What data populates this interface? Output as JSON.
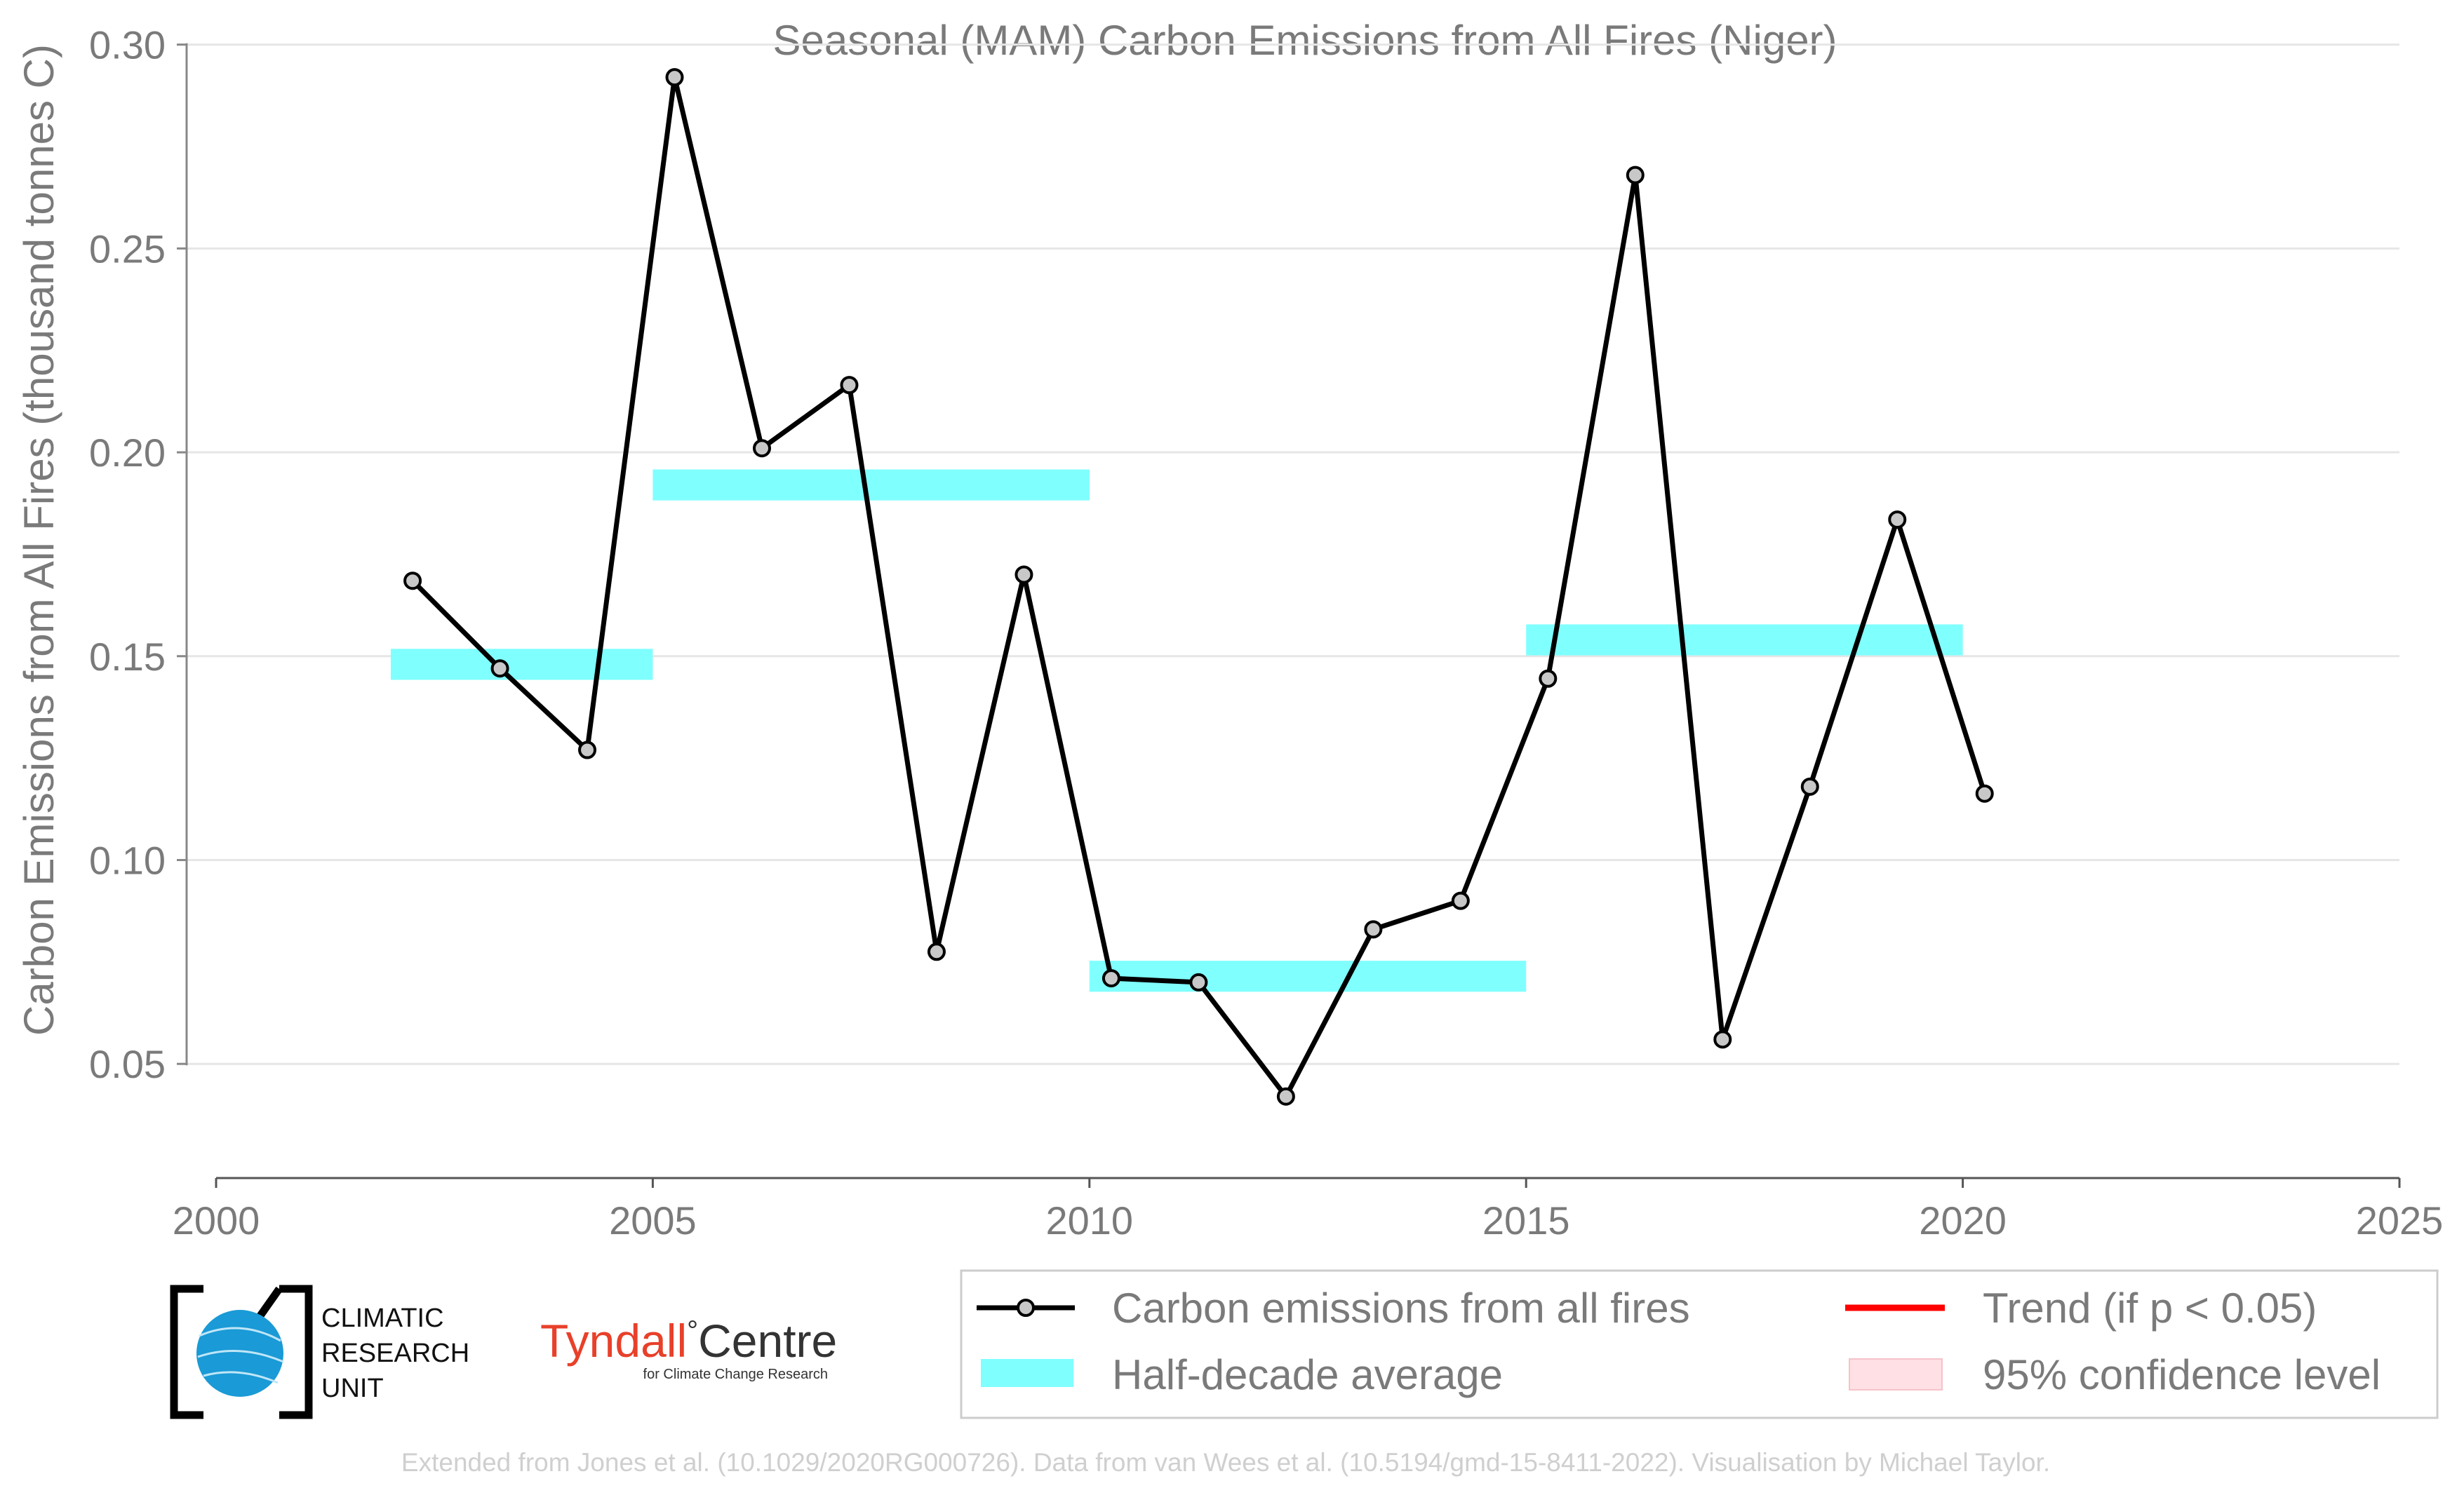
{
  "chart_data": {
    "type": "line",
    "title": "Seasonal (MAM) Carbon Emissions from All Fires (Niger)",
    "xlabel": "",
    "ylabel": "Carbon Emissions from All Fires (thousand tonnes C)",
    "xlim": [
      2000,
      2025
    ],
    "ylim": [
      0.022,
      0.302
    ],
    "xticks": [
      "2000",
      "2005",
      "2010",
      "2015",
      "2020",
      "2025"
    ],
    "yticks": [
      "0.05",
      "0.10",
      "0.15",
      "0.20",
      "0.25",
      "0.30"
    ],
    "grid": "horizontal",
    "series": [
      {
        "name": "Carbon emissions from all fires",
        "color": "#000000",
        "marker_color": "#c8c8c8",
        "x": [
          2002.25,
          2003.25,
          2004.25,
          2005.25,
          2006.25,
          2007.25,
          2008.25,
          2009.25,
          2010.25,
          2011.25,
          2012.25,
          2013.25,
          2014.25,
          2015.25,
          2016.25,
          2017.25,
          2018.25,
          2019.25,
          2020.25
        ],
        "values": [
          0.1685,
          0.147,
          0.127,
          0.292,
          0.201,
          0.2165,
          0.0775,
          0.17,
          0.071,
          0.07,
          0.042,
          0.083,
          0.09,
          0.1445,
          0.268,
          0.056,
          0.118,
          0.1835,
          0.1163
        ]
      }
    ],
    "half_decade_average": {
      "name": "Half-decade average",
      "color": "#80ffff",
      "segments": [
        {
          "start": 2002,
          "end": 2005,
          "value": 0.148
        },
        {
          "start": 2005,
          "end": 2010,
          "value": 0.192
        },
        {
          "start": 2010,
          "end": 2015,
          "value": 0.0715
        },
        {
          "start": 2015,
          "end": 2020,
          "value": 0.154
        }
      ]
    },
    "legend": {
      "placement": "bottom-right",
      "entries": [
        {
          "label": "Carbon emissions from all fires",
          "kind": "line-marker",
          "color": "#000000"
        },
        {
          "label": "Trend (if p < 0.05)",
          "kind": "line",
          "color": "#ff0000"
        },
        {
          "label": "Half-decade average",
          "kind": "patch",
          "color": "#80ffff"
        },
        {
          "label": "95% confidence level",
          "kind": "patch",
          "color": "#ffe0e4"
        }
      ]
    }
  },
  "logos": {
    "cru_lines": [
      "CLIMATIC",
      "RESEARCH",
      "UNIT"
    ],
    "tyndall_name": "Tyndall",
    "tyndall_degree": "°",
    "tyndall_centre": "Centre",
    "tyndall_sub": "for Climate Change Research"
  },
  "footer": "Extended from Jones et al. (10.1029/2020RG000726). Data from van Wees et al. (10.5194/gmd-15-8411-2022). Visualisation by Michael Taylor.",
  "colors": {
    "text": "#7a7a7a",
    "footer": "#cfcfcf",
    "tyndall_red": "#e8402a",
    "cru_blue": "#1a9ad6"
  }
}
